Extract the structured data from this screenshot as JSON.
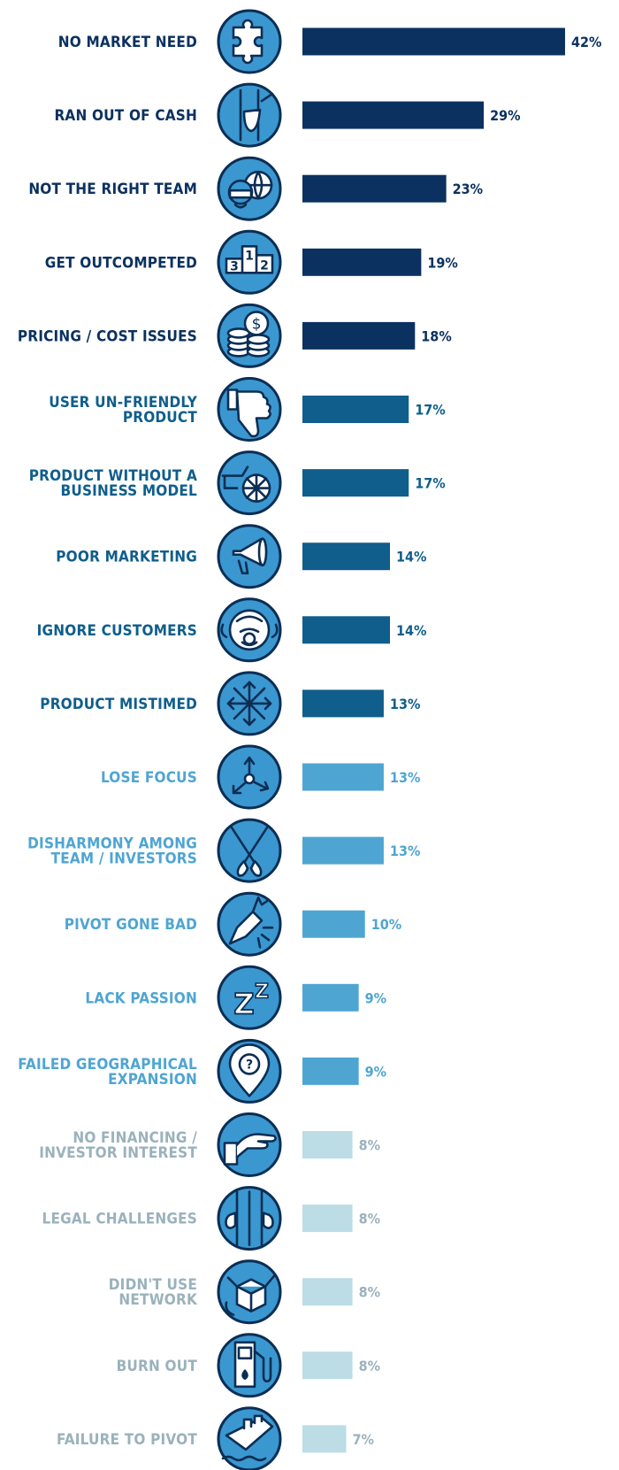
{
  "chart_data": {
    "type": "bar",
    "orientation": "horizontal",
    "xlim": [
      0,
      42
    ],
    "value_suffix": "%",
    "colors": {
      "tier1": "#0b3160",
      "tier2": "#0f5e8c",
      "tier3": "#4fa5d2",
      "tier4": "#bcdce6",
      "tier4_text": "#9ab2bc",
      "icon_fill": "#3b97cf",
      "icon_stroke": "#0b2e54"
    },
    "categories": [
      {
        "lines": [
          "NO MARKET NEED"
        ],
        "value": 42,
        "tier": "tier1",
        "icon": "puzzle-icon"
      },
      {
        "lines": [
          "RAN OUT OF CASH"
        ],
        "value": 29,
        "tier": "tier1",
        "icon": "empty-pocket-icon"
      },
      {
        "lines": [
          "NOT THE RIGHT TEAM"
        ],
        "value": 23,
        "tier": "tier1",
        "icon": "team-globe-icon"
      },
      {
        "lines": [
          "GET OUTCOMPETED"
        ],
        "value": 19,
        "tier": "tier1",
        "icon": "podium-icon"
      },
      {
        "lines": [
          "PRICING / COST ISSUES"
        ],
        "value": 18,
        "tier": "tier1",
        "icon": "coins-dollar-icon"
      },
      {
        "lines": [
          "USER UN-FRIENDLY",
          "PRODUCT"
        ],
        "value": 17,
        "tier": "tier2",
        "icon": "thumbs-down-icon"
      },
      {
        "lines": [
          "PRODUCT WITHOUT A",
          "BUSINESS MODEL"
        ],
        "value": 17,
        "tier": "tier2",
        "icon": "cart-icon"
      },
      {
        "lines": [
          "POOR MARKETING"
        ],
        "value": 14,
        "tier": "tier2",
        "icon": "megaphone-icon"
      },
      {
        "lines": [
          "IGNORE CUSTOMERS"
        ],
        "value": 14,
        "tier": "tier2",
        "icon": "monkey-icon"
      },
      {
        "lines": [
          "PRODUCT MISTIMED"
        ],
        "value": 13,
        "tier": "tier2",
        "icon": "snowflake-icon"
      },
      {
        "lines": [
          "LOSE FOCUS"
        ],
        "value": 13,
        "tier": "tier3",
        "icon": "scatter-arrows-icon"
      },
      {
        "lines": [
          "DISHARMONY AMONG",
          "TEAM / INVESTORS"
        ],
        "value": 13,
        "tier": "tier3",
        "icon": "crossed-oars-icon"
      },
      {
        "lines": [
          "PIVOT GONE BAD"
        ],
        "value": 10,
        "tier": "tier3",
        "icon": "broken-pencil-icon"
      },
      {
        "lines": [
          "LACK PASSION"
        ],
        "value": 9,
        "tier": "tier3",
        "icon": "sleep-zz-icon"
      },
      {
        "lines": [
          "FAILED GEOGRAPHICAL",
          "EXPANSION"
        ],
        "value": 9,
        "tier": "tier3",
        "icon": "map-pin-question-icon"
      },
      {
        "lines": [
          "NO FINANCING /",
          "INVESTOR INTEREST"
        ],
        "value": 8,
        "tier": "tier4",
        "icon": "open-hand-icon"
      },
      {
        "lines": [
          "LEGAL CHALLENGES"
        ],
        "value": 8,
        "tier": "tier4",
        "icon": "jail-bars-icon"
      },
      {
        "lines": [
          "DIDN'T USE",
          "NETWORK"
        ],
        "value": 8,
        "tier": "tier4",
        "icon": "box-icon"
      },
      {
        "lines": [
          "BURN OUT"
        ],
        "value": 8,
        "tier": "tier4",
        "icon": "fuel-pump-icon"
      },
      {
        "lines": [
          "FAILURE TO PIVOT"
        ],
        "value": 7,
        "tier": "tier4",
        "icon": "sinking-ship-icon"
      }
    ]
  }
}
